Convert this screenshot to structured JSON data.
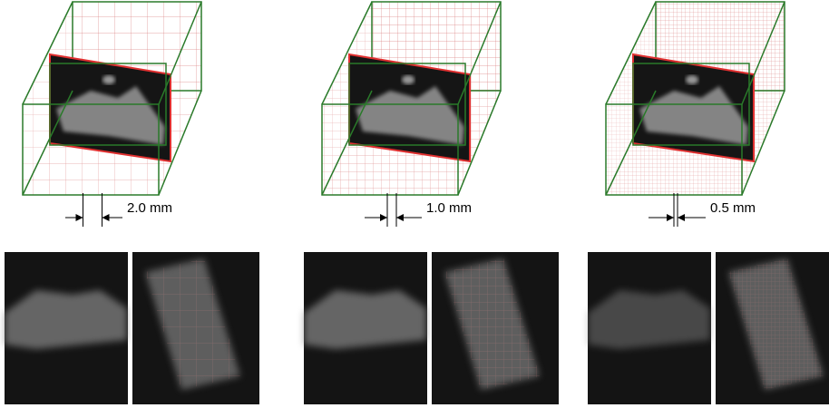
{
  "panels": [
    {
      "label": "2.0 mm"
    },
    {
      "label": "1.0 mm"
    },
    {
      "label": "0.5 mm"
    }
  ]
}
